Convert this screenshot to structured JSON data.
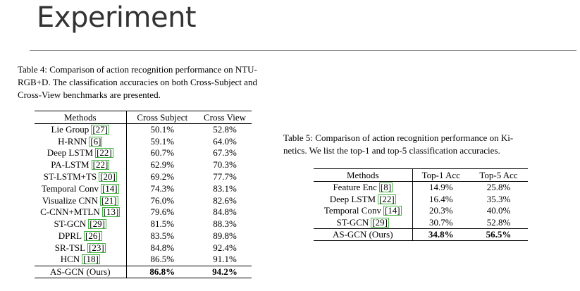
{
  "slide": {
    "title": "Experiment"
  },
  "table4": {
    "caption_lines": [
      "Table 4: Comparison of action recognition performance on NTU-",
      "RGB+D. The classification accuracies on both Cross-Subject and",
      "Cross-View benchmarks are presented."
    ],
    "headers": [
      "Methods",
      "Cross Subject",
      "Cross View"
    ],
    "rows": [
      {
        "method": "Lie Group",
        "ref": "[27]",
        "cs": "50.1%",
        "cv": "52.8%"
      },
      {
        "method": "H-RNN",
        "ref": "[6]",
        "cs": "59.1%",
        "cv": "64.0%"
      },
      {
        "method": "Deep LSTM",
        "ref": "[22]",
        "cs": "60.7%",
        "cv": "67.3%"
      },
      {
        "method": "PA-LSTM",
        "ref": "[22]",
        "cs": "62.9%",
        "cv": "70.3%"
      },
      {
        "method": "ST-LSTM+TS",
        "ref": "[20]",
        "cs": "69.2%",
        "cv": "77.7%"
      },
      {
        "method": "Temporal Conv",
        "ref": "[14]",
        "cs": "74.3%",
        "cv": "83.1%"
      },
      {
        "method": "Visualize CNN",
        "ref": "[21]",
        "cs": "76.0%",
        "cv": "82.6%"
      },
      {
        "method": "C-CNN+MTLN",
        "ref": "[13]",
        "cs": "79.6%",
        "cv": "84.8%"
      },
      {
        "method": "ST-GCN",
        "ref": "[29]",
        "cs": "81.5%",
        "cv": "88.3%"
      },
      {
        "method": "DPRL",
        "ref": "[26]",
        "cs": "83.5%",
        "cv": "89.8%"
      },
      {
        "method": "SR-TSL",
        "ref": "[23]",
        "cs": "84.8%",
        "cv": "92.4%"
      },
      {
        "method": "HCN",
        "ref": "[18]",
        "cs": "86.5%",
        "cv": "91.1%"
      }
    ],
    "ours": {
      "method": "AS-GCN (Ours)",
      "cs": "86.8%",
      "cv": "94.2%"
    }
  },
  "table5": {
    "caption_lines": [
      "Table 5: Comparison of action recognition performance on Ki-",
      "netics. We list the top-1 and top-5 classification accuracies."
    ],
    "headers": [
      "Methods",
      "Top-1 Acc",
      "Top-5 Acc"
    ],
    "rows": [
      {
        "method": "Feature Enc",
        "ref": "[8]",
        "top1": "14.9%",
        "top5": "25.8%"
      },
      {
        "method": "Deep LSTM",
        "ref": "[22]",
        "top1": "16.4%",
        "top5": "35.3%"
      },
      {
        "method": "Temporal Conv",
        "ref": "[14]",
        "top1": "20.3%",
        "top5": "40.0%"
      },
      {
        "method": "ST-GCN",
        "ref": "[29]",
        "top1": "30.7%",
        "top5": "52.8%"
      }
    ],
    "ours": {
      "method": "AS-GCN (Ours)",
      "top1": "34.8%",
      "top5": "56.5%"
    }
  }
}
